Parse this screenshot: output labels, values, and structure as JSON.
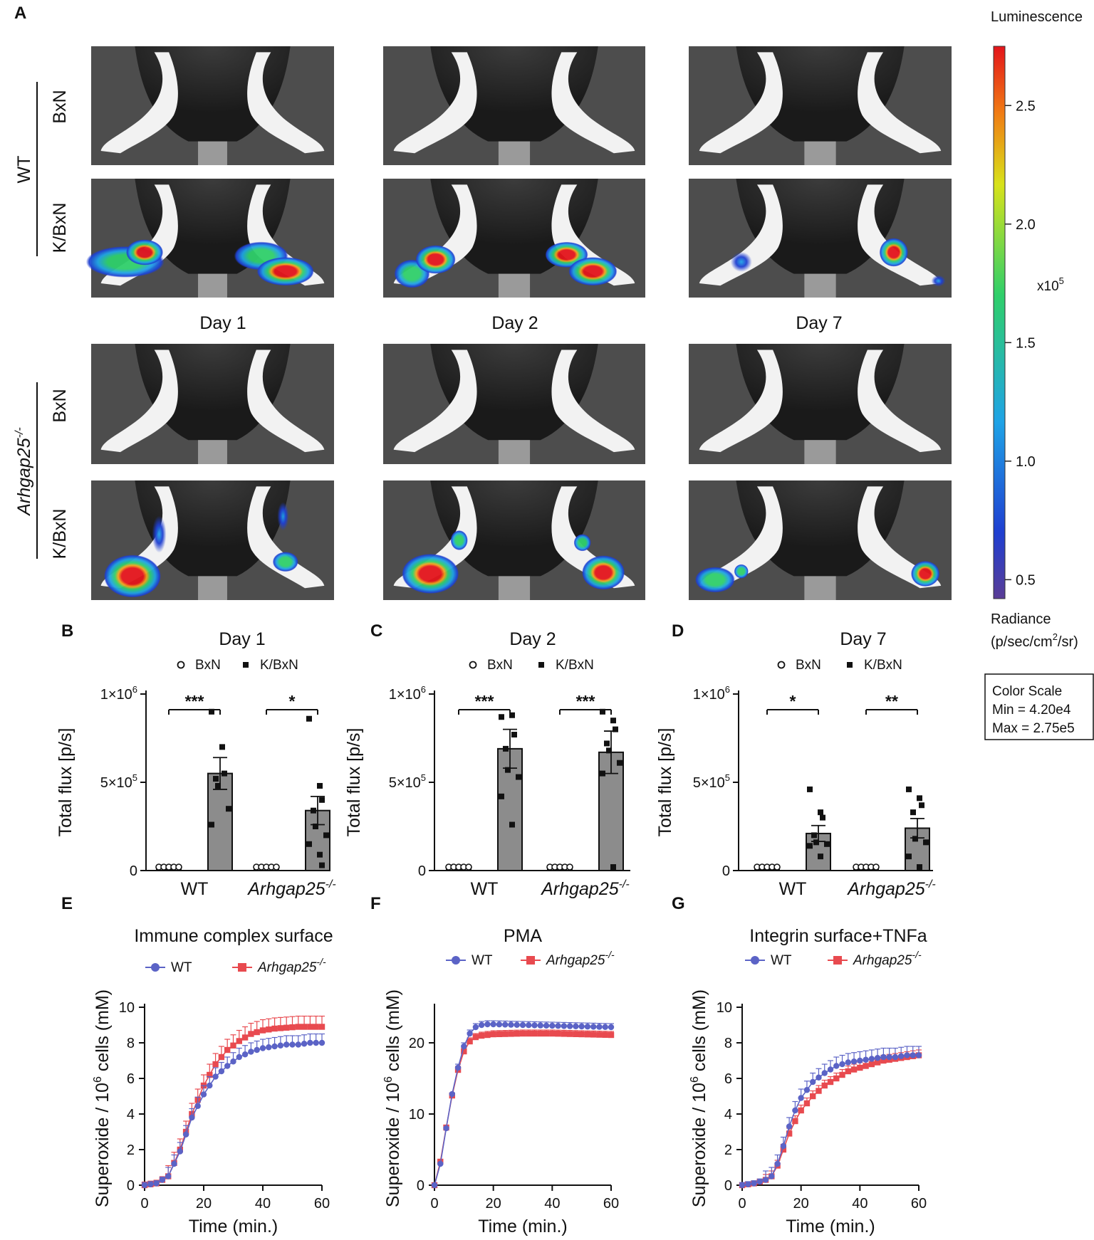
{
  "panel_letters": {
    "a": "A",
    "b": "B",
    "c": "C",
    "d": "D",
    "e": "E",
    "f": "F",
    "g": "G"
  },
  "imaging": {
    "day_labels": [
      "Day 1",
      "Day 2",
      "Day 7"
    ],
    "groups": [
      {
        "label": "WT",
        "italic": false,
        "rows": [
          "BxN",
          "K/BxN"
        ]
      },
      {
        "label": "Arhgap25",
        "sup": "-/-",
        "italic": true,
        "rows": [
          "BxN",
          "K/BxN"
        ]
      }
    ],
    "colorbar": {
      "title": "Luminescence",
      "ticks": [
        "2.5",
        "2.0",
        "1.5",
        "1.0",
        "0.5"
      ],
      "multiplier": "x10",
      "multiplier_exp": "5",
      "unit_line1": "Radiance",
      "unit_line2": "(p/sec/cm",
      "unit_line2_sup": "2",
      "unit_line2_end": "/sr)",
      "scale_box": [
        "Color Scale",
        "Min = 4.20e4",
        "Max = 2.75e5"
      ],
      "colors": [
        "#5a3d96",
        "#1f3fd1",
        "#1fa3e6",
        "#2fcf6a",
        "#d8e21a",
        "#f07b14",
        "#e3141b"
      ]
    }
  },
  "chart_data": [
    {
      "id": "B",
      "type": "bar",
      "title": "Day 1",
      "ylabel": "Total flux [p/s]",
      "yticks": [
        "0",
        "5×10",
        "1×10"
      ],
      "ytick_exp": [
        "",
        "5",
        "6"
      ],
      "ylim": [
        0,
        1000000
      ],
      "legend": [
        "BxN",
        "K/BxN"
      ],
      "categories": [
        "WT",
        "Arhgap25"
      ],
      "category_sup": [
        "",
        "-/-"
      ],
      "series": [
        {
          "name": "BxN",
          "values": [
            10000,
            20000
          ],
          "errors": [
            3000,
            6000
          ],
          "points": [
            [
              10000,
              12000,
              9000,
              11000,
              10000
            ],
            [
              15000,
              25000,
              20000,
              18000,
              22000
            ]
          ]
        },
        {
          "name": "K/BxN",
          "values": [
            550000,
            340000
          ],
          "errors": [
            90000,
            80000
          ],
          "points": [
            [
              900000,
              700000,
              550000,
              520000,
              480000,
              350000,
              260000
            ],
            [
              860000,
              480000,
              400000,
              340000,
              250000,
              200000,
              150000,
              90000,
              30000
            ]
          ]
        }
      ],
      "significance": [
        "***",
        "*"
      ]
    },
    {
      "id": "C",
      "type": "bar",
      "title": "Day 2",
      "ylabel": "Total flux [p/s]",
      "yticks": [
        "0",
        "5×10",
        "1×10"
      ],
      "ytick_exp": [
        "",
        "5",
        "6"
      ],
      "ylim": [
        0,
        1000000
      ],
      "legend": [
        "BxN",
        "K/BxN"
      ],
      "categories": [
        "WT",
        "Arhgap25"
      ],
      "category_sup": [
        "",
        "-/-"
      ],
      "series": [
        {
          "name": "BxN",
          "values": [
            10000,
            10000
          ],
          "errors": [
            3000,
            3000
          ],
          "points": [
            [
              10000,
              11000,
              9000,
              10000,
              10000
            ],
            [
              10000,
              12000,
              9000,
              11000,
              10000
            ]
          ]
        },
        {
          "name": "K/BxN",
          "values": [
            690000,
            670000
          ],
          "errors": [
            110000,
            120000
          ],
          "points": [
            [
              870000,
              880000,
              770000,
              690000,
              570000,
              530000,
              420000,
              260000
            ],
            [
              900000,
              850000,
              800000,
              720000,
              680000,
              610000,
              550000,
              20000
            ]
          ]
        }
      ],
      "significance": [
        "***",
        "***"
      ]
    },
    {
      "id": "D",
      "type": "bar",
      "title": "Day 7",
      "ylabel": "Total flux [p/s]",
      "yticks": [
        "0",
        "5×10",
        "1×10"
      ],
      "ytick_exp": [
        "",
        "5",
        "6"
      ],
      "ylim": [
        0,
        1000000
      ],
      "legend": [
        "BxN",
        "K/BxN"
      ],
      "categories": [
        "WT",
        "Arhgap25"
      ],
      "category_sup": [
        "",
        "-/-"
      ],
      "series": [
        {
          "name": "BxN",
          "values": [
            5000,
            5000
          ],
          "errors": [
            2000,
            2000
          ],
          "points": [
            [
              5000,
              6000,
              4000,
              5000,
              5000
            ],
            [
              5000,
              6000,
              4000,
              5000,
              5000
            ]
          ]
        },
        {
          "name": "K/BxN",
          "values": [
            210000,
            240000
          ],
          "errors": [
            45000,
            55000
          ],
          "points": [
            [
              460000,
              330000,
              300000,
              200000,
              160000,
              150000,
              140000,
              80000
            ],
            [
              460000,
              410000,
              370000,
              330000,
              180000,
              160000,
              80000,
              20000
            ]
          ]
        }
      ],
      "significance": [
        "*",
        "**"
      ]
    },
    {
      "id": "E",
      "type": "line",
      "title": "Immune complex surface",
      "xlabel": "Time (min.)",
      "ylabel": "Superoxide / 10",
      "ylabel_sup": "6",
      "ylabel_end": " cells (mM)",
      "xlim": [
        0,
        60
      ],
      "ylim": [
        0,
        10
      ],
      "xticks": [
        0,
        20,
        40,
        60
      ],
      "yticks": [
        0,
        2,
        4,
        6,
        8,
        10
      ],
      "legend": [
        "WT",
        "Arhgap25"
      ],
      "legend_sup": "-/-",
      "series": [
        {
          "name": "WT",
          "color": "#5b63c6",
          "marker": "circle",
          "err": 0.5,
          "key_x": [
            0,
            4,
            8,
            12,
            16,
            20,
            24,
            28,
            32,
            36,
            40,
            44,
            48,
            52,
            56,
            60
          ],
          "key_y": [
            0,
            0.1,
            0.5,
            1.9,
            3.8,
            5.1,
            6.1,
            6.7,
            7.2,
            7.5,
            7.7,
            7.8,
            7.9,
            7.9,
            8.0,
            8.0
          ]
        },
        {
          "name": "Arhgap25-/-",
          "color": "#e84a4f",
          "marker": "square",
          "err": 0.6,
          "key_x": [
            0,
            4,
            8,
            12,
            16,
            20,
            24,
            28,
            32,
            36,
            40,
            44,
            48,
            52,
            56,
            60
          ],
          "key_y": [
            0,
            0.1,
            0.5,
            2.0,
            4.0,
            5.6,
            6.8,
            7.6,
            8.1,
            8.5,
            8.7,
            8.8,
            8.85,
            8.9,
            8.9,
            8.9
          ]
        }
      ]
    },
    {
      "id": "F",
      "type": "line",
      "title": "PMA",
      "xlabel": "Time (min.)",
      "ylabel": "Superoxide / 10",
      "ylabel_sup": "6",
      "ylabel_end": " cells (mM)",
      "xlim": [
        0,
        60
      ],
      "ylim": [
        0,
        25
      ],
      "xticks": [
        0,
        20,
        40,
        60
      ],
      "yticks": [
        0,
        10,
        20
      ],
      "legend": [
        "WT",
        "Arhgap25"
      ],
      "legend_sup": "-/-",
      "series": [
        {
          "name": "WT",
          "color": "#5b63c6",
          "marker": "circle",
          "err": 0.5,
          "key_x": [
            0,
            2,
            4,
            6,
            8,
            10,
            12,
            14,
            16,
            18,
            20,
            30,
            40,
            50,
            60
          ],
          "key_y": [
            0,
            3.0,
            8.0,
            12.8,
            16.5,
            19.5,
            21.3,
            22.2,
            22.5,
            22.6,
            22.6,
            22.5,
            22.4,
            22.3,
            22.2
          ]
        },
        {
          "name": "Arhgap25-/-",
          "color": "#e84a4f",
          "marker": "square",
          "err": 0.5,
          "key_x": [
            0,
            2,
            4,
            6,
            8,
            10,
            12,
            14,
            16,
            18,
            20,
            30,
            40,
            50,
            60
          ],
          "key_y": [
            0,
            3.3,
            8.1,
            12.6,
            16.2,
            18.8,
            20.2,
            20.8,
            21.0,
            21.1,
            21.2,
            21.3,
            21.3,
            21.2,
            21.1
          ]
        }
      ]
    },
    {
      "id": "G",
      "type": "line",
      "title": "Integrin surface+TNFa",
      "xlabel": "Time (min.)",
      "ylabel": "Superoxide / 10",
      "ylabel_sup": "6",
      "ylabel_end": " cells (mM)",
      "xlim": [
        0,
        60
      ],
      "ylim": [
        0,
        10
      ],
      "xticks": [
        0,
        20,
        40,
        60
      ],
      "yticks": [
        0,
        2,
        4,
        6,
        8,
        10
      ],
      "legend": [
        "WT",
        "Arhgap25"
      ],
      "legend_sup": "-/-",
      "series": [
        {
          "name": "WT",
          "color": "#5b63c6",
          "marker": "circle",
          "err": 0.5,
          "key_x": [
            0,
            4,
            8,
            10,
            12,
            14,
            16,
            18,
            20,
            24,
            28,
            32,
            36,
            40,
            44,
            48,
            52,
            56,
            60
          ],
          "key_y": [
            0,
            0.1,
            0.3,
            0.5,
            1.2,
            2.2,
            3.3,
            4.2,
            4.9,
            5.8,
            6.3,
            6.7,
            6.9,
            7.0,
            7.1,
            7.2,
            7.2,
            7.3,
            7.3
          ]
        },
        {
          "name": "Arhgap25-/-",
          "color": "#e84a4f",
          "marker": "square",
          "err": 0.3,
          "key_x": [
            0,
            4,
            8,
            10,
            12,
            14,
            16,
            18,
            20,
            24,
            28,
            32,
            36,
            40,
            44,
            48,
            52,
            56,
            60
          ],
          "key_y": [
            0,
            0.1,
            0.3,
            0.5,
            1.1,
            2.0,
            2.9,
            3.6,
            4.2,
            5.0,
            5.6,
            6.0,
            6.4,
            6.6,
            6.8,
            7.0,
            7.1,
            7.2,
            7.3
          ]
        }
      ]
    }
  ]
}
